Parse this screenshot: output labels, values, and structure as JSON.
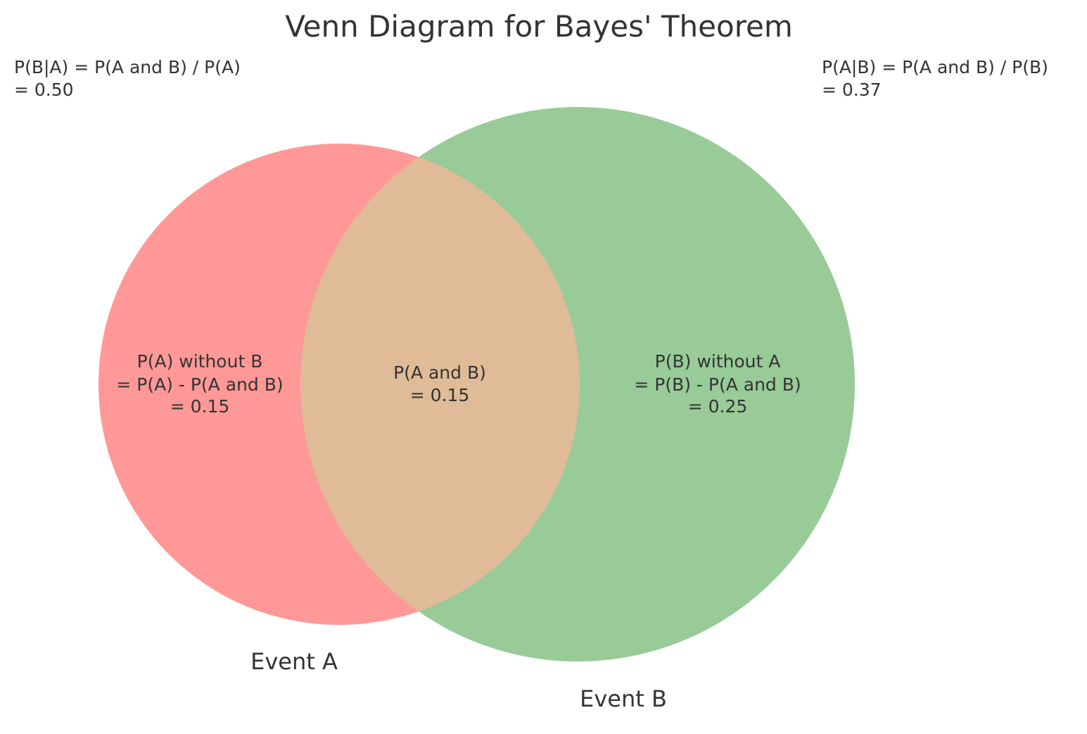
{
  "title": "Venn Diagram for Bayes' Theorem",
  "colors": {
    "event_a": "#ff9896",
    "event_b": "#98cb98",
    "overlap": "#dfbb97",
    "text": "#333333",
    "background": "#ffffff"
  },
  "formulas": {
    "b_given_a": {
      "line1": "P(B|A) = P(A and B) / P(A)",
      "line2": "= 0.50"
    },
    "a_given_b": {
      "line1": "P(A|B) = P(A and B) / P(B)",
      "line2": "= 0.37"
    }
  },
  "regions": {
    "a_only": {
      "line1": "P(A) without B",
      "line2": "= P(A) - P(A and B)",
      "line3": "= 0.15",
      "value": 0.15
    },
    "intersection": {
      "line1": "P(A and B)",
      "line2": "= 0.15",
      "value": 0.15
    },
    "b_only": {
      "line1": "P(B) without A",
      "line2": "= P(B) - P(A and B)",
      "line3": "= 0.25",
      "value": 0.25
    }
  },
  "sets": {
    "a": {
      "label": "Event A"
    },
    "b": {
      "label": "Event B"
    }
  }
}
